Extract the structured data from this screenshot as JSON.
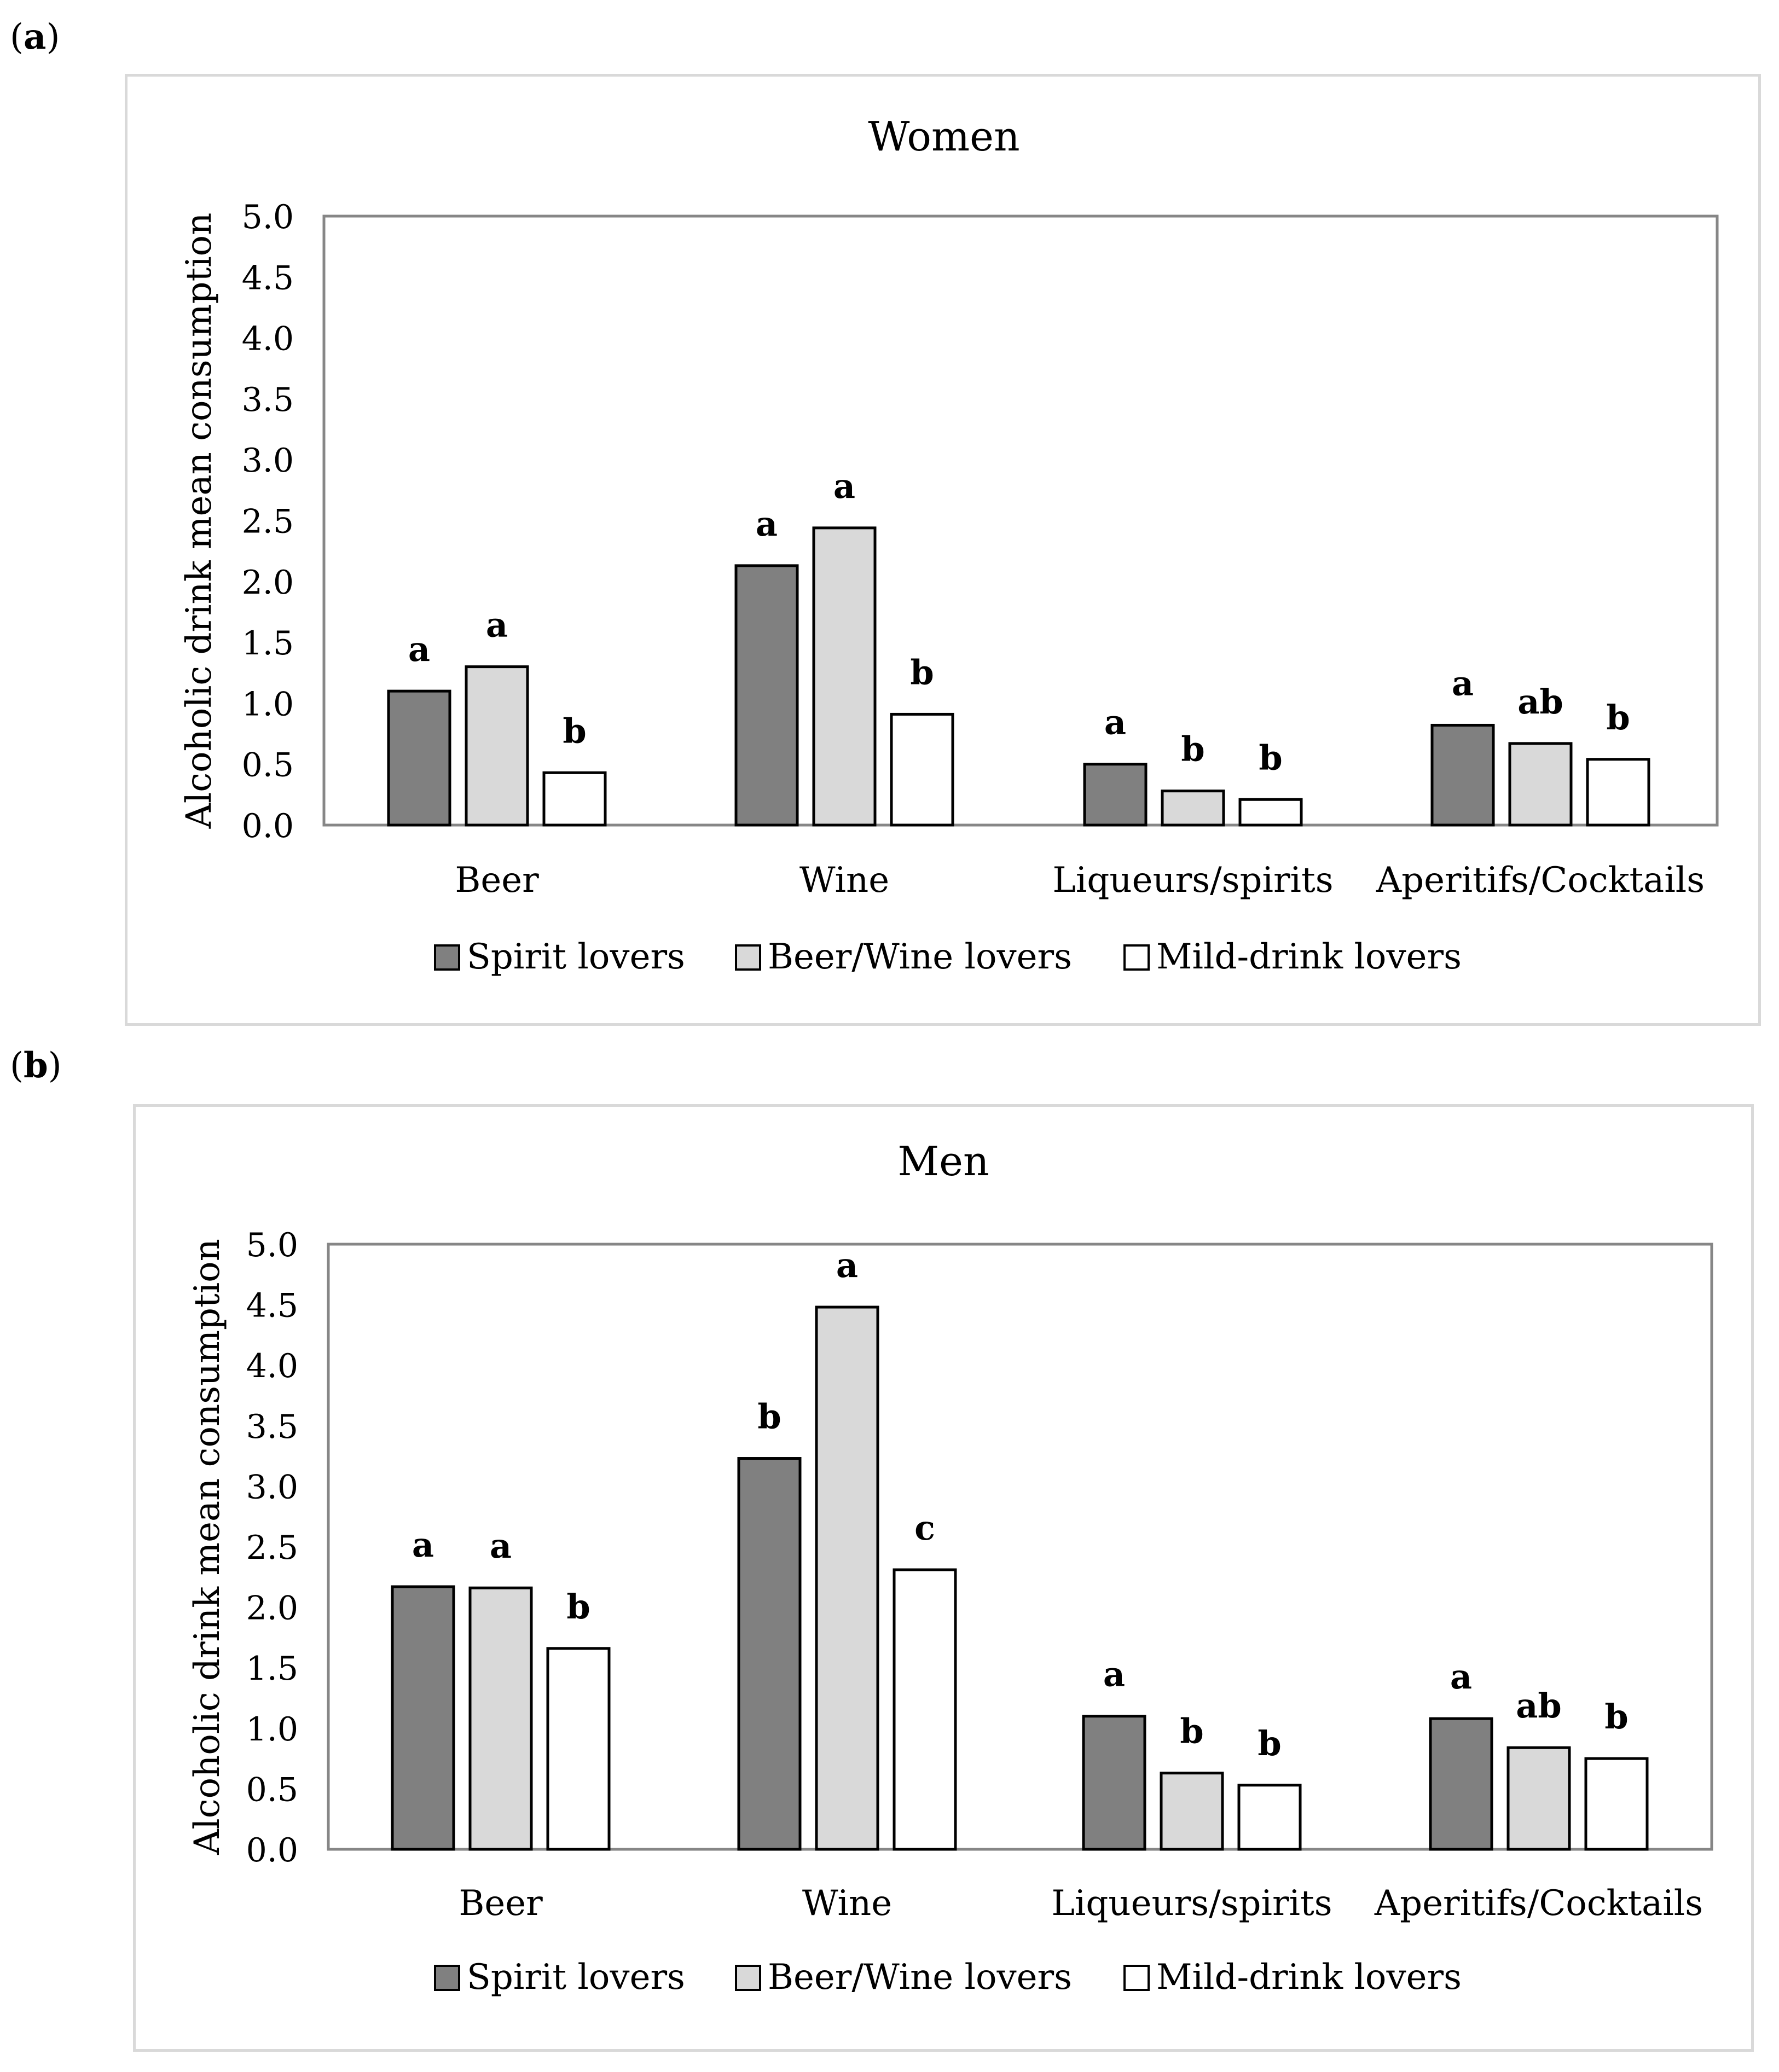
{
  "panels": [
    {
      "label_letter": "a",
      "label_open": "(",
      "label_close": ")"
    },
    {
      "label_letter": "b",
      "label_open": "(",
      "label_close": ")"
    }
  ],
  "series_colors": {
    "Spirit lovers": "#808080",
    "Beer/Wine lovers": "#d9d9d9",
    "Mild-drink lovers": "#ffffff"
  },
  "chart_data": [
    {
      "type": "bar",
      "title": "Women",
      "xlabel": "",
      "ylabel": "Alcoholic drink mean consumption",
      "ylim": [
        0,
        5
      ],
      "yticks": [
        "0.0",
        "0.5",
        "1.0",
        "1.5",
        "2.0",
        "2.5",
        "3.0",
        "3.5",
        "4.0",
        "4.5",
        "5.0"
      ],
      "categories": [
        "Beer",
        "Wine",
        "Liqueurs/spirits",
        "Aperitifs/Cocktails"
      ],
      "series": [
        {
          "name": "Spirit lovers",
          "values": [
            1.1,
            2.13,
            0.5,
            0.82
          ],
          "letters": [
            "a",
            "a",
            "a",
            "a"
          ]
        },
        {
          "name": "Beer/Wine lovers",
          "values": [
            1.3,
            2.44,
            0.28,
            0.67
          ],
          "letters": [
            "a",
            "a",
            "b",
            "ab"
          ]
        },
        {
          "name": "Mild-drink lovers",
          "values": [
            0.43,
            0.91,
            0.21,
            0.54
          ],
          "letters": [
            "b",
            "b",
            "b",
            "b"
          ]
        }
      ],
      "legend": "bottom"
    },
    {
      "type": "bar",
      "title": "Men",
      "xlabel": "",
      "ylabel": "Alcoholic drink mean consumption",
      "ylim": [
        0,
        5
      ],
      "yticks": [
        "0.0",
        "0.5",
        "1.0",
        "1.5",
        "2.0",
        "2.5",
        "3.0",
        "3.5",
        "4.0",
        "4.5",
        "5.0"
      ],
      "categories": [
        "Beer",
        "Wine",
        "Liqueurs/spirits",
        "Aperitifs/Cocktails"
      ],
      "series": [
        {
          "name": "Spirit lovers",
          "values": [
            2.17,
            3.23,
            1.1,
            1.08
          ],
          "letters": [
            "a",
            "b",
            "a",
            "a"
          ]
        },
        {
          "name": "Beer/Wine lovers",
          "values": [
            2.16,
            4.48,
            0.63,
            0.84
          ],
          "letters": [
            "a",
            "a",
            "b",
            "ab"
          ]
        },
        {
          "name": "Mild-drink lovers",
          "values": [
            1.66,
            2.31,
            0.53,
            0.75
          ],
          "letters": [
            "b",
            "c",
            "b",
            "b"
          ]
        }
      ],
      "legend": "bottom"
    }
  ]
}
